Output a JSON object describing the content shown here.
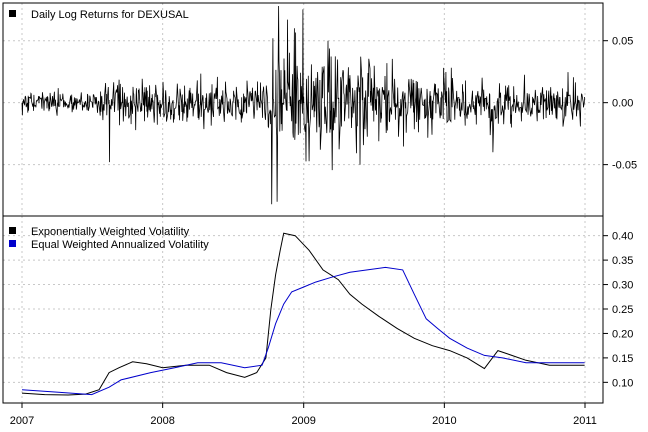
{
  "chart_data": [
    {
      "type": "line",
      "panel": "top",
      "xlim": [
        "2007-01-01",
        "2011-01-01"
      ],
      "ylim": [
        -0.085,
        0.078
      ],
      "y_ticks": [
        0.05,
        0.0,
        -0.05
      ],
      "y_tick_labels": [
        "0.05",
        "0.00",
        "-0.05"
      ],
      "grid": true,
      "legend_position": "top-left",
      "series": [
        {
          "name": "Daily Log Returns for DEXUSAL",
          "color": "#000000",
          "style": "daily spikes",
          "key_points": [
            {
              "date": "2007-08-16",
              "value": -0.048
            },
            {
              "date": "2008-10-10",
              "value": -0.082
            },
            {
              "date": "2008-10-13",
              "value": 0.052
            },
            {
              "date": "2008-10-24",
              "value": -0.08
            },
            {
              "date": "2008-10-28",
              "value": 0.078
            },
            {
              "date": "2008-11-20",
              "value": 0.067
            },
            {
              "date": "2008-12-08",
              "value": 0.06
            },
            {
              "date": "2009-03-05",
              "value": 0.05
            },
            {
              "date": "2010-05-07",
              "value": -0.04
            }
          ]
        }
      ]
    },
    {
      "type": "line",
      "panel": "bottom",
      "xlim": [
        "2007-01-01",
        "2011-01-01"
      ],
      "ylim": [
        0.07,
        0.43
      ],
      "y_ticks": [
        0.4,
        0.35,
        0.3,
        0.25,
        0.2,
        0.15,
        0.1
      ],
      "y_tick_labels": [
        "0.40",
        "0.35",
        "0.30",
        "0.25",
        "0.20",
        "0.15",
        "0.10"
      ],
      "x_ticks": [
        "2007-01-01",
        "2008-01-01",
        "2009-01-01",
        "2010-01-01",
        "2011-01-01"
      ],
      "x_tick_labels": [
        "2007",
        "2008",
        "2009",
        "2010",
        "2011"
      ],
      "grid": true,
      "legend_position": "top-left",
      "series": [
        {
          "name": "Exponentially Weighted Volatility",
          "color": "#000000",
          "points": [
            [
              "2007-01-01",
              0.078
            ],
            [
              "2007-03-01",
              0.075
            ],
            [
              "2007-05-01",
              0.074
            ],
            [
              "2007-06-15",
              0.076
            ],
            [
              "2007-07-20",
              0.085
            ],
            [
              "2007-08-15",
              0.12
            ],
            [
              "2007-09-10",
              0.13
            ],
            [
              "2007-10-15",
              0.142
            ],
            [
              "2007-11-20",
              0.138
            ],
            [
              "2008-01-01",
              0.13
            ],
            [
              "2008-03-01",
              0.135
            ],
            [
              "2008-05-01",
              0.135
            ],
            [
              "2008-06-15",
              0.12
            ],
            [
              "2008-08-01",
              0.11
            ],
            [
              "2008-09-01",
              0.12
            ],
            [
              "2008-09-25",
              0.15
            ],
            [
              "2008-10-08",
              0.25
            ],
            [
              "2008-10-20",
              0.32
            ],
            [
              "2008-11-01",
              0.37
            ],
            [
              "2008-11-10",
              0.405
            ],
            [
              "2008-12-10",
              0.4
            ],
            [
              "2009-01-15",
              0.37
            ],
            [
              "2009-02-20",
              0.33
            ],
            [
              "2009-04-01",
              0.31
            ],
            [
              "2009-05-01",
              0.28
            ],
            [
              "2009-06-01",
              0.26
            ],
            [
              "2009-07-15",
              0.235
            ],
            [
              "2009-09-01",
              0.21
            ],
            [
              "2009-10-15",
              0.19
            ],
            [
              "2009-12-01",
              0.175
            ],
            [
              "2010-01-15",
              0.165
            ],
            [
              "2010-03-01",
              0.15
            ],
            [
              "2010-04-15",
              0.128
            ],
            [
              "2010-05-20",
              0.165
            ],
            [
              "2010-06-15",
              0.158
            ],
            [
              "2010-08-01",
              0.145
            ],
            [
              "2010-10-01",
              0.135
            ],
            [
              "2010-12-31",
              0.135
            ]
          ]
        },
        {
          "name": "Equal Weighted Annualized Volatility",
          "color": "#0000cc",
          "points": [
            [
              "2007-01-01",
              0.085
            ],
            [
              "2007-04-01",
              0.08
            ],
            [
              "2007-07-01",
              0.075
            ],
            [
              "2007-08-15",
              0.09
            ],
            [
              "2007-09-15",
              0.105
            ],
            [
              "2007-12-01",
              0.12
            ],
            [
              "2008-02-01",
              0.13
            ],
            [
              "2008-04-01",
              0.14
            ],
            [
              "2008-06-01",
              0.14
            ],
            [
              "2008-08-01",
              0.13
            ],
            [
              "2008-09-15",
              0.135
            ],
            [
              "2008-10-01",
              0.17
            ],
            [
              "2008-10-20",
              0.22
            ],
            [
              "2008-11-10",
              0.26
            ],
            [
              "2008-12-01",
              0.285
            ],
            [
              "2009-01-01",
              0.295
            ],
            [
              "2009-02-01",
              0.305
            ],
            [
              "2009-03-15",
              0.315
            ],
            [
              "2009-05-01",
              0.325
            ],
            [
              "2009-06-15",
              0.33
            ],
            [
              "2009-08-01",
              0.335
            ],
            [
              "2009-09-15",
              0.33
            ],
            [
              "2009-10-15",
              0.28
            ],
            [
              "2009-11-15",
              0.23
            ],
            [
              "2009-12-15",
              0.21
            ],
            [
              "2010-01-15",
              0.19
            ],
            [
              "2010-03-01",
              0.17
            ],
            [
              "2010-04-15",
              0.155
            ],
            [
              "2010-06-01",
              0.15
            ],
            [
              "2010-08-01",
              0.14
            ],
            [
              "2010-10-01",
              0.14
            ],
            [
              "2010-12-31",
              0.14
            ]
          ]
        }
      ]
    }
  ]
}
